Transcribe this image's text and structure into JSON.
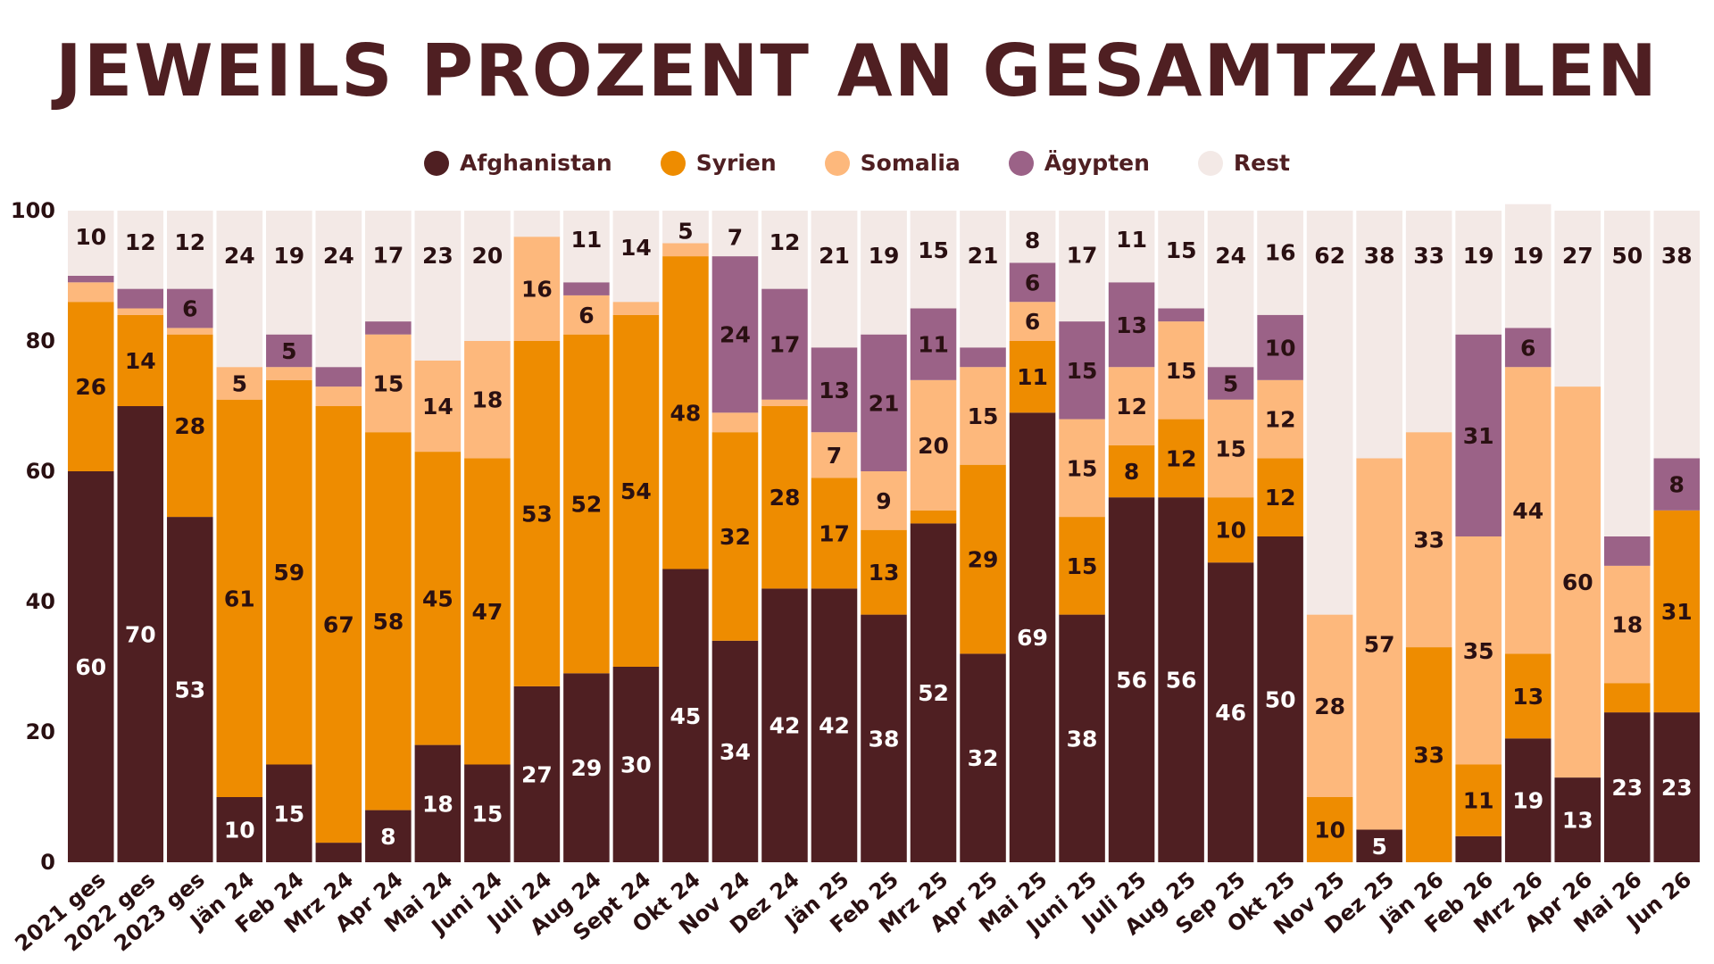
{
  "chart_data": {
    "type": "bar",
    "stacked": true,
    "title": "JEWEILS PROZENT AN GESAMTZAHLEN",
    "ylim": [
      0,
      100
    ],
    "yticks": [
      "0",
      "20",
      "40",
      "60",
      "80",
      "100"
    ],
    "grid": false,
    "legend_position": "top-center",
    "categories": [
      "2021 ges",
      "2022 ges",
      "2023 ges",
      "Jän 24",
      "Feb 24",
      "Mrz 24",
      "Apr 24",
      "Mai 24",
      "Juni 24",
      "Juli 24",
      "Aug 24",
      "Sept 24",
      "Okt 24",
      "Nov 24",
      "Dez 24",
      "Jän 25",
      "Feb 25",
      "Mrz 25",
      "Apr 25",
      "Mai 25",
      "Juni 25",
      "Juli 25",
      "Aug 25",
      "Sep 25",
      "Okt 25",
      "Nov 25",
      "Dez 25",
      "Jän 26",
      "Feb 26",
      "Mrz 26",
      "Apr 26",
      "Mai 26",
      "Jun 26"
    ],
    "series": [
      {
        "name": "Afghanistan",
        "color": "#4f1f22",
        "values": [
          60,
          70,
          53,
          10,
          15,
          3,
          8,
          18,
          15,
          27,
          29,
          30,
          45,
          34,
          42,
          42,
          38,
          52,
          32,
          69,
          38,
          56,
          56,
          46,
          50,
          0,
          5,
          0,
          4,
          19,
          13,
          23,
          23
        ],
        "labels": [
          "60",
          "70",
          "53",
          "10",
          "15",
          "",
          "8",
          "18",
          "15",
          "27",
          "29",
          "30",
          "45",
          "34",
          "42",
          "42",
          "38",
          "52",
          "32",
          "69",
          "38",
          "56",
          "56",
          "46",
          "50",
          "",
          "5",
          "",
          "",
          "19",
          "13",
          "23",
          "23"
        ]
      },
      {
        "name": "Syrien",
        "color": "#ee8c00",
        "values": [
          26,
          14,
          28,
          61,
          59,
          67,
          58,
          45,
          47,
          53,
          52,
          54,
          48,
          32,
          28,
          17,
          13,
          2,
          29,
          11,
          15,
          8,
          12,
          10,
          12,
          10,
          0,
          33,
          11,
          13,
          0,
          4.5,
          31
        ],
        "labels": [
          "26",
          "14",
          "28",
          "61",
          "59",
          "67",
          "58",
          "45",
          "47",
          "53",
          "52",
          "54",
          "48",
          "32",
          "28",
          "17",
          "13",
          "",
          "29",
          "11",
          "15",
          "8",
          "12",
          "10",
          "12",
          "10",
          "",
          "33",
          "11",
          "13",
          "",
          "",
          "31"
        ]
      },
      {
        "name": "Somalia",
        "color": "#fdb87c",
        "values": [
          3,
          1,
          1,
          5,
          2,
          3,
          15,
          14,
          18,
          16,
          6,
          2,
          2,
          3,
          1,
          7,
          9,
          20,
          15,
          6,
          15,
          12,
          15,
          15,
          12,
          28,
          57,
          33,
          35,
          44,
          60,
          18,
          0
        ],
        "labels": [
          "",
          "",
          "",
          "5",
          "",
          "",
          "15",
          "14",
          "18",
          "16",
          "6",
          "",
          "",
          "",
          "",
          "7",
          "9",
          "20",
          "15",
          "6",
          "15",
          "12",
          "15",
          "15",
          "12",
          "28",
          "57",
          "33",
          "35",
          "44",
          "60",
          "18",
          ""
        ]
      },
      {
        "name": "Ägypten",
        "color": "#9b6287",
        "values": [
          1,
          3,
          6,
          0,
          5,
          3,
          2,
          0,
          0,
          0,
          2,
          0,
          0,
          24,
          17,
          13,
          21,
          11,
          3,
          6,
          15,
          13,
          2,
          5,
          10,
          0,
          0,
          0,
          31,
          6,
          0,
          4.5,
          8
        ],
        "labels": [
          "",
          "",
          "6",
          "",
          "5",
          "",
          "",
          "",
          "",
          "",
          "",
          "",
          "",
          "24",
          "17",
          "13",
          "21",
          "11",
          "",
          "6",
          "15",
          "13",
          "",
          "5",
          "10",
          "",
          "",
          "",
          "31",
          "6",
          "",
          "",
          "8"
        ]
      },
      {
        "name": "Rest",
        "color": "#f3e9e6",
        "values": [
          10,
          12,
          12,
          24,
          19,
          24,
          17,
          23,
          20,
          4,
          11,
          14,
          5,
          7,
          12,
          21,
          19,
          15,
          21,
          8,
          17,
          11,
          15,
          24,
          16,
          62,
          38,
          33,
          19,
          19,
          27,
          50,
          38
        ],
        "labels": [
          "10",
          "12",
          "12",
          "24",
          "19",
          "24",
          "17",
          "23",
          "20",
          "",
          "11",
          "14",
          "5",
          "7",
          "12",
          "21",
          "19",
          "15",
          "21",
          "8",
          "17",
          "11",
          "15",
          "24",
          "16",
          "62",
          "38",
          "33",
          "19",
          "19",
          "27",
          "50",
          "38"
        ]
      }
    ]
  }
}
